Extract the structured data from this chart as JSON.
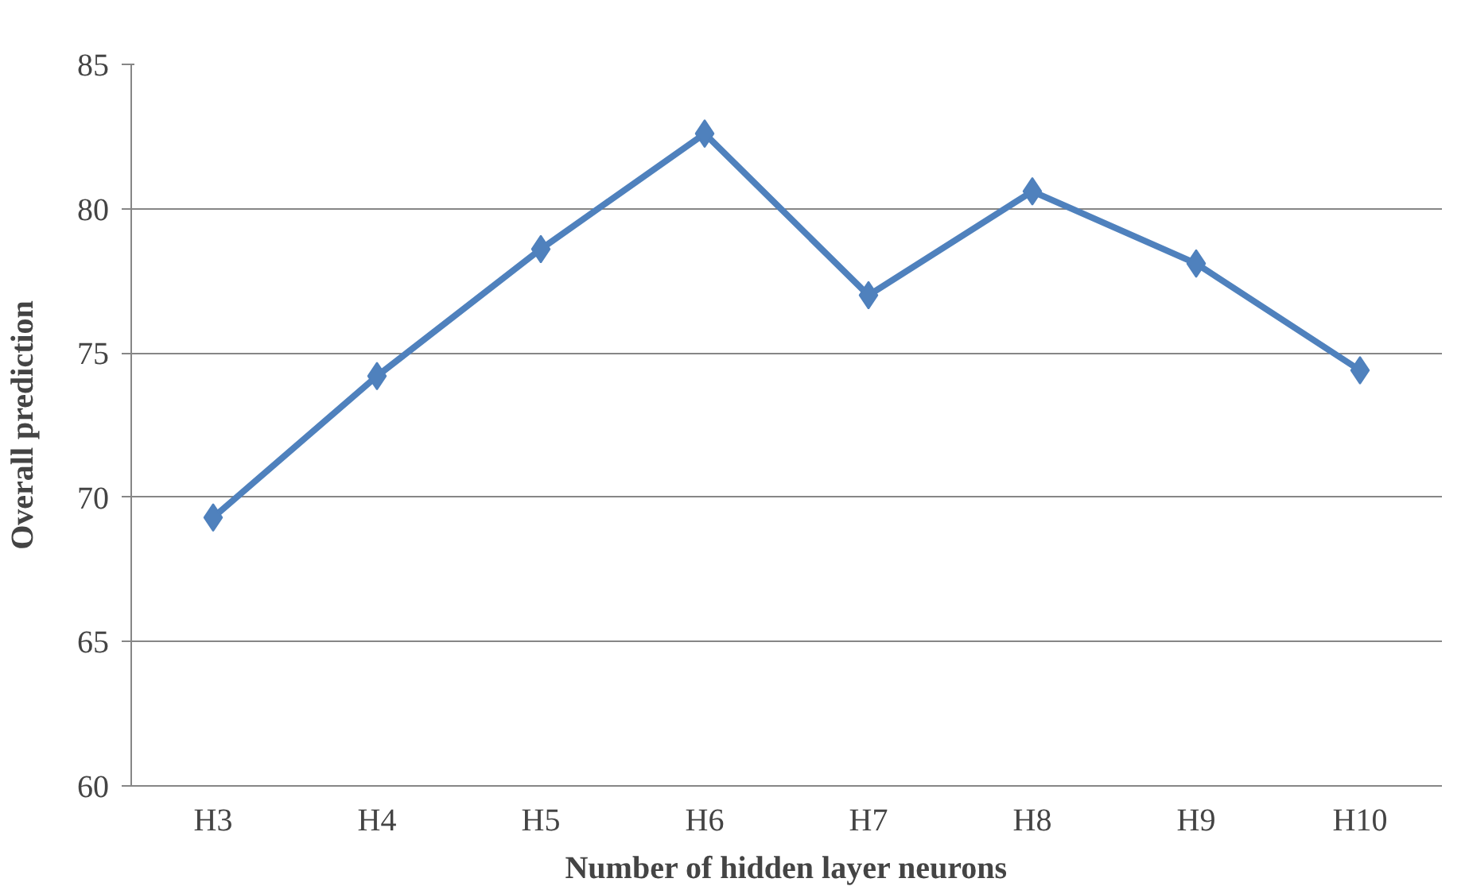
{
  "chart_data": {
    "type": "line",
    "xlabel": "Number of hidden layer neurons",
    "ylabel": "Overall prediction",
    "categories": [
      "H3",
      "H4",
      "H5",
      "H6",
      "H7",
      "H8",
      "H9",
      "H10"
    ],
    "series": [
      {
        "color": "#4f81bd",
        "values": [
          69.3,
          74.2,
          78.6,
          82.6,
          77.0,
          80.6,
          78.1,
          74.4
        ]
      }
    ],
    "ylim": [
      60,
      85
    ],
    "yticks": [
      60,
      65,
      70,
      75,
      80,
      85
    ],
    "grid": "y",
    "marker": "diamond",
    "line_style": "solid"
  }
}
